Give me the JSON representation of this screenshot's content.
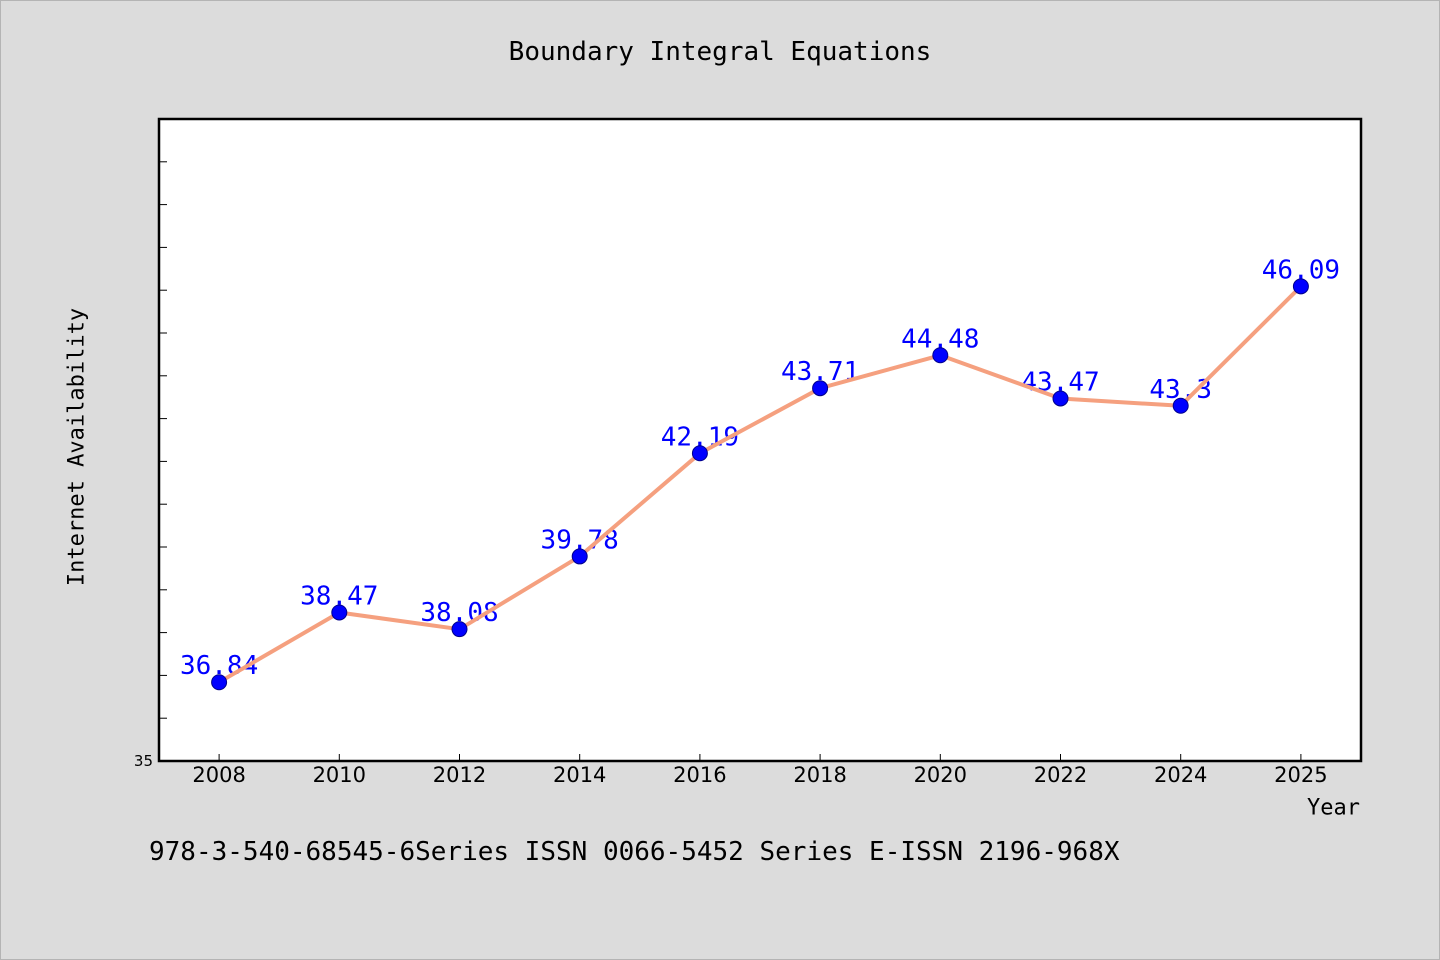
{
  "footer": "978-3-540-68545-6Series ISSN 0066-5452 Series E-ISSN 2196-968X",
  "colors": {
    "background": "#dcdcdc",
    "plot_background": "#ffffff",
    "frame": "#000000",
    "line": "#f5a07f",
    "marker": "#0000ff",
    "marker_edge": "#00008b",
    "data_label": "#0000ff"
  },
  "chart_data": {
    "type": "line",
    "title": "Boundary Integral Equations",
    "xlabel": "Year",
    "ylabel": "Internet Availability",
    "categories": [
      "2008",
      "2010",
      "2012",
      "2014",
      "2016",
      "2018",
      "2020",
      "2022",
      "2024",
      "2025"
    ],
    "series": [
      {
        "values": [
          36.84,
          38.47,
          38.08,
          39.78,
          42.19,
          43.71,
          44.48,
          43.47,
          43.3,
          46.09
        ]
      }
    ],
    "ylim": [
      35,
      50
    ],
    "yticks": [
      35,
      36,
      37,
      38,
      39,
      40,
      41,
      42,
      43,
      44,
      45,
      46,
      47,
      48,
      49
    ],
    "ytick_labels": [
      {
        "value": 35,
        "text": "35"
      }
    ],
    "data_labels": true,
    "markers": "circle",
    "grid": false
  }
}
